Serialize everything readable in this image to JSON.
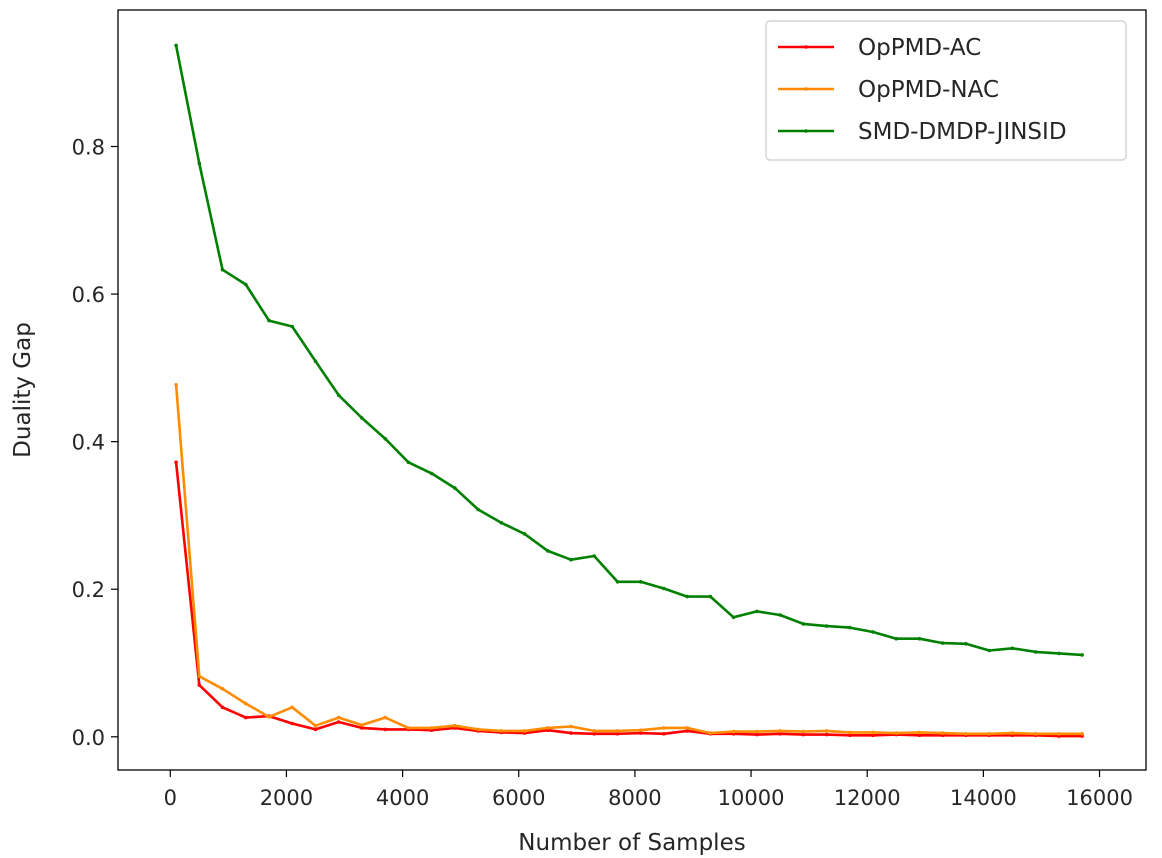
{
  "chart_data": {
    "type": "line",
    "xlabel": "Number of Samples",
    "ylabel": "Duality Gap",
    "xlim": [
      -900,
      16800
    ],
    "ylim": [
      -0.045,
      0.985
    ],
    "xticks": [
      0,
      2000,
      4000,
      6000,
      8000,
      10000,
      12000,
      14000,
      16000
    ],
    "yticks": [
      0.0,
      0.2,
      0.4,
      0.6,
      0.8
    ],
    "xtick_labels": [
      "0",
      "2000",
      "4000",
      "6000",
      "8000",
      "10000",
      "12000",
      "14000",
      "16000"
    ],
    "ytick_labels": [
      "0.0",
      "0.2",
      "0.4",
      "0.6",
      "0.8"
    ],
    "grid": false,
    "legend_position": "top-right",
    "x": [
      100,
      500,
      900,
      1300,
      1700,
      2100,
      2500,
      2900,
      3300,
      3700,
      4100,
      4500,
      4900,
      5300,
      5700,
      6100,
      6500,
      6900,
      7300,
      7700,
      8100,
      8500,
      8900,
      9300,
      9700,
      10100,
      10500,
      10900,
      11300,
      11700,
      12100,
      12500,
      12900,
      13300,
      13700,
      14100,
      14500,
      14900,
      15300,
      15700
    ],
    "series": [
      {
        "name": "OpPMD-AC",
        "color": "#ff0000",
        "values": [
          0.372,
          0.07,
          0.04,
          0.026,
          0.028,
          0.018,
          0.01,
          0.02,
          0.012,
          0.01,
          0.01,
          0.009,
          0.012,
          0.008,
          0.006,
          0.005,
          0.009,
          0.005,
          0.004,
          0.004,
          0.005,
          0.004,
          0.008,
          0.004,
          0.004,
          0.003,
          0.004,
          0.003,
          0.003,
          0.002,
          0.002,
          0.003,
          0.002,
          0.002,
          0.002,
          0.002,
          0.002,
          0.002,
          0.001,
          0.001
        ]
      },
      {
        "name": "OpPMD-NAC",
        "color": "#ff8c00",
        "values": [
          0.477,
          0.082,
          0.065,
          0.045,
          0.027,
          0.04,
          0.015,
          0.026,
          0.016,
          0.026,
          0.012,
          0.012,
          0.015,
          0.01,
          0.008,
          0.008,
          0.012,
          0.014,
          0.008,
          0.008,
          0.009,
          0.012,
          0.012,
          0.005,
          0.007,
          0.007,
          0.008,
          0.007,
          0.008,
          0.006,
          0.006,
          0.005,
          0.006,
          0.005,
          0.004,
          0.004,
          0.005,
          0.004,
          0.004,
          0.004
        ]
      },
      {
        "name": "SMD-DMDP-JINSID",
        "color": "#008000",
        "values": [
          0.937,
          0.777,
          0.633,
          0.613,
          0.564,
          0.556,
          0.509,
          0.463,
          0.432,
          0.404,
          0.372,
          0.357,
          0.337,
          0.308,
          0.29,
          0.275,
          0.252,
          0.24,
          0.245,
          0.21,
          0.21,
          0.201,
          0.19,
          0.19,
          0.162,
          0.17,
          0.165,
          0.153,
          0.15,
          0.148,
          0.142,
          0.133,
          0.133,
          0.127,
          0.126,
          0.117,
          0.12,
          0.115,
          0.113,
          0.111
        ]
      }
    ]
  }
}
